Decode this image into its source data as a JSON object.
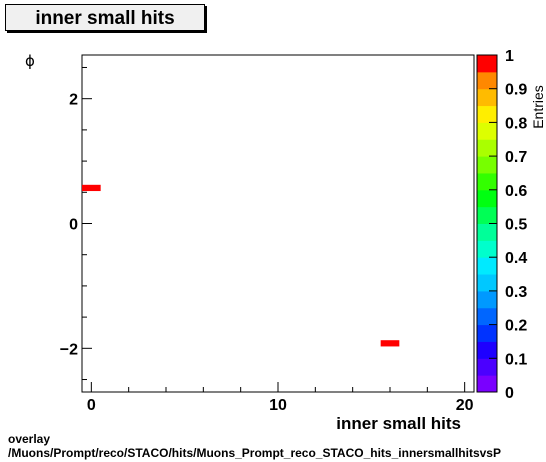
{
  "chart_data": {
    "type": "heatmap",
    "title": "inner small hits",
    "xlabel": "inner small hits",
    "ylabel": "ϕ",
    "zlabel": "Entries",
    "xlim": [
      -0.5,
      20.5
    ],
    "ylim": [
      -2.7,
      2.7
    ],
    "zlim": [
      0,
      1
    ],
    "x_ticks": [
      0,
      10,
      20
    ],
    "y_ticks": [
      -2,
      0,
      2
    ],
    "z_ticks": [
      "0",
      "0.1",
      "0.2",
      "0.3",
      "0.4",
      "0.5",
      "0.6",
      "0.7",
      "0.8",
      "0.9",
      "1"
    ],
    "bins": [
      {
        "x": [
          -0.5,
          0.5
        ],
        "y": [
          0.52,
          0.62
        ],
        "value": 1
      },
      {
        "x": [
          15.5,
          16.5
        ],
        "y": [
          -1.97,
          -1.87
        ],
        "value": 1
      }
    ]
  },
  "footer": {
    "line1": "overlay",
    "line2": "/Muons/Prompt/reco/STACO/hits/Muons_Prompt_reco_STACO_hits_innersmallhitsvsP"
  }
}
